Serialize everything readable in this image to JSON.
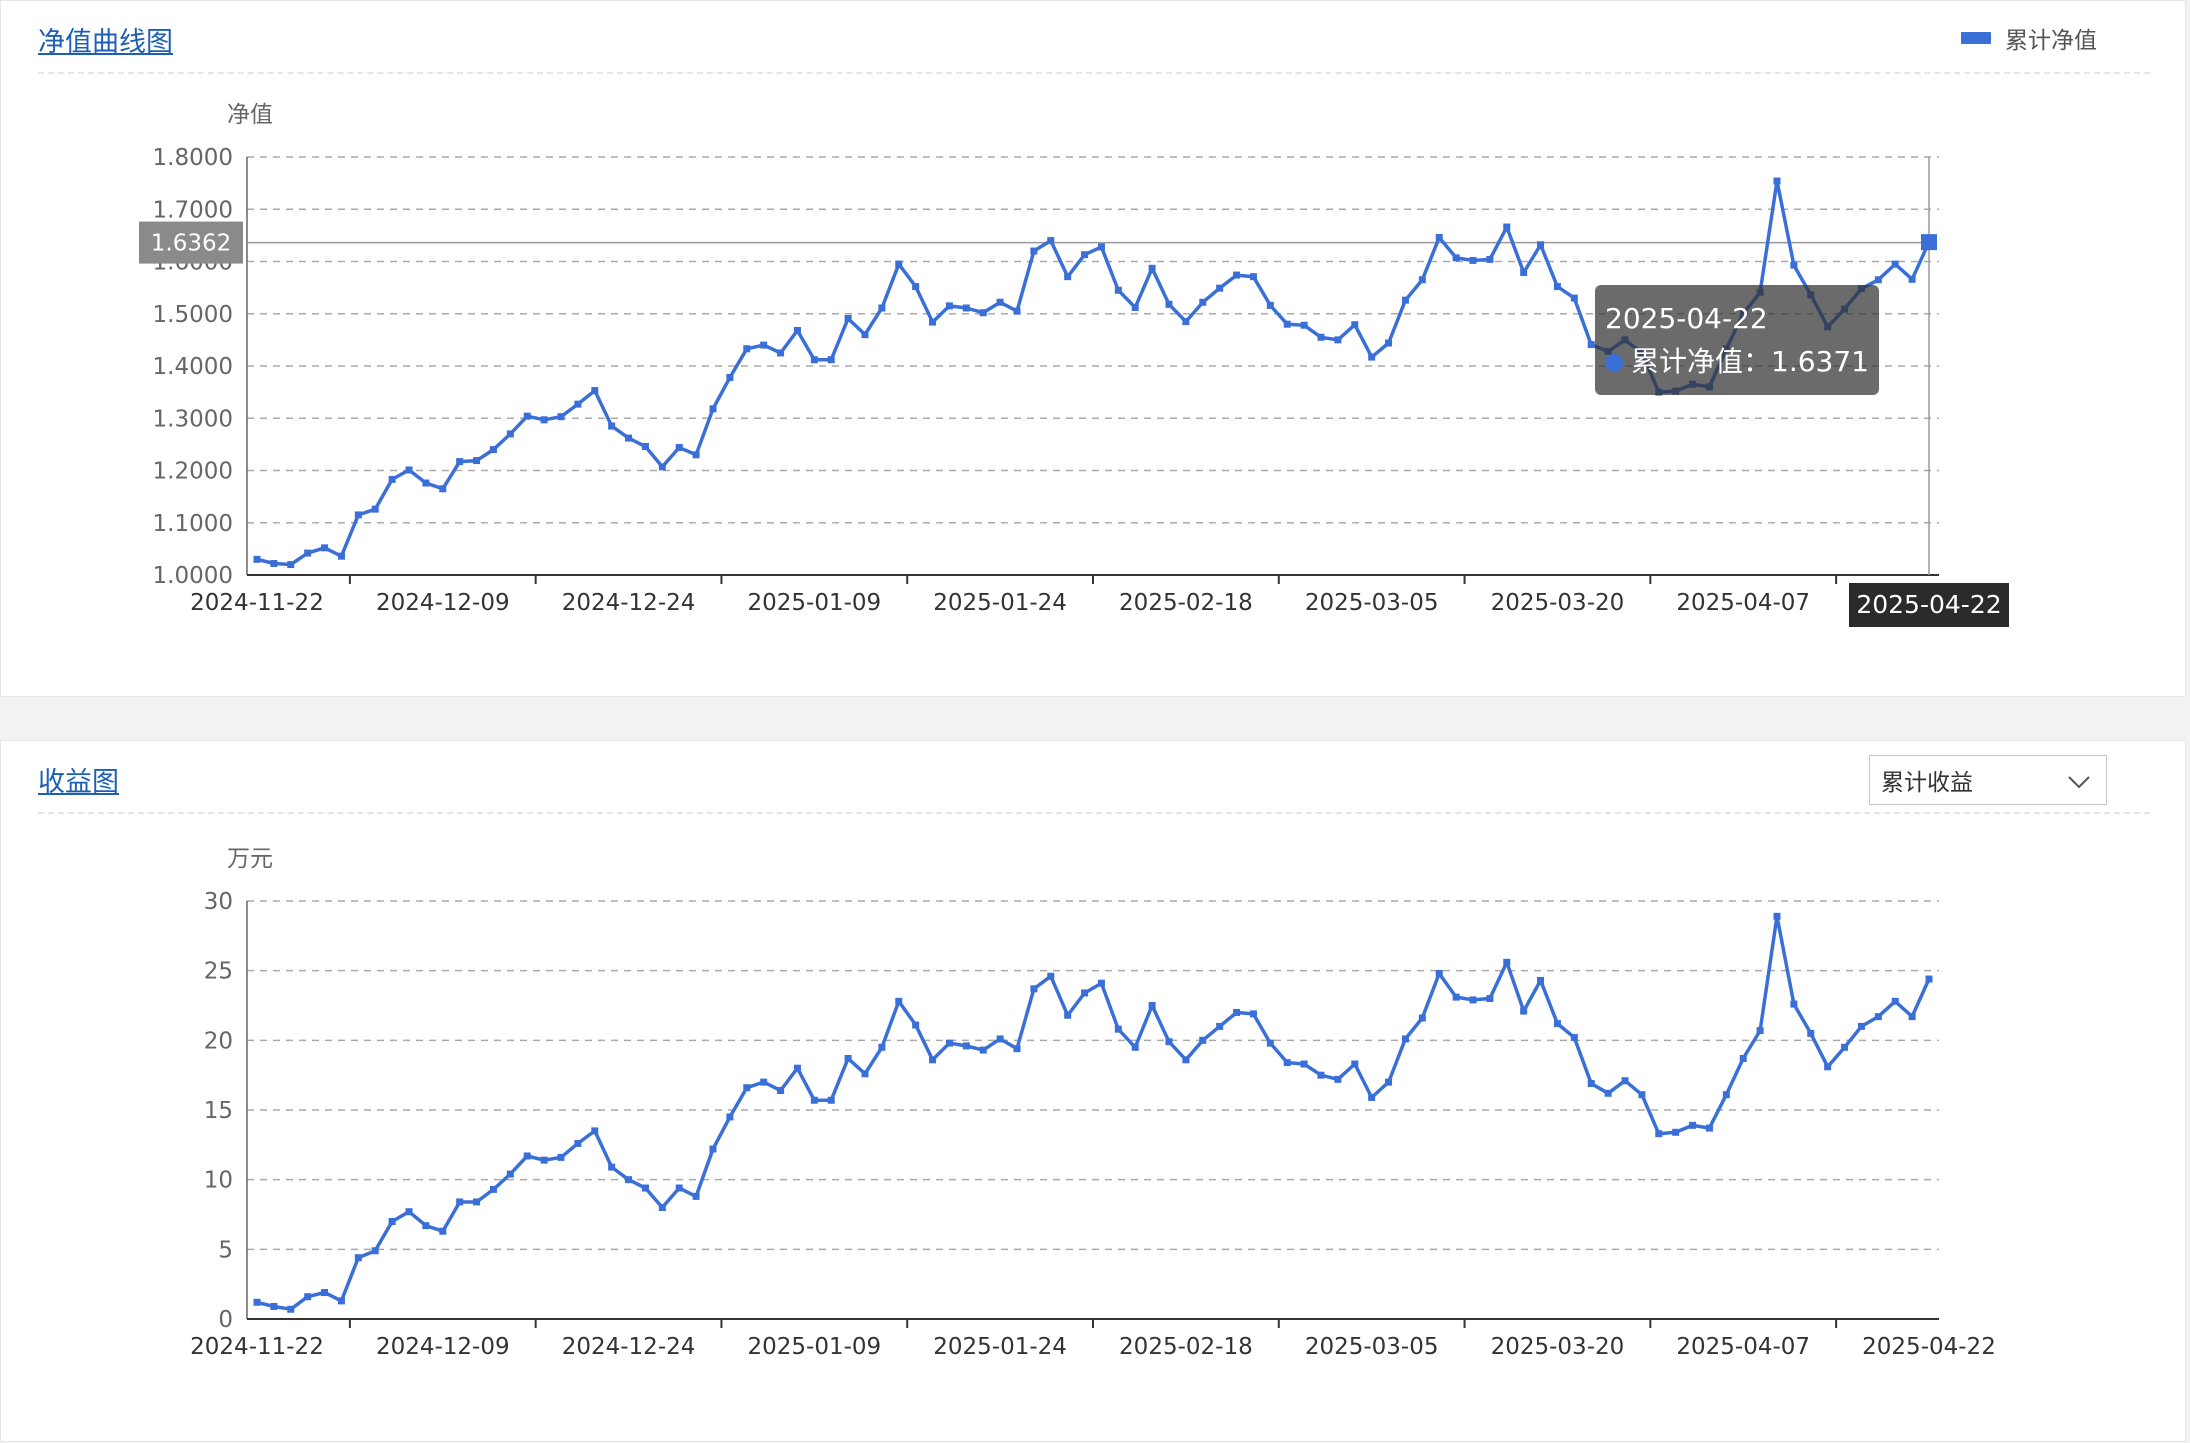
{
  "nav_panel": {
    "title": "净值曲线图",
    "legend_label": "累计净值",
    "axis_pointer_y_label": "1.6362",
    "axis_pointer_x_label": "2025-04-22",
    "tooltip": {
      "date": "2025-04-22",
      "series_label": "累计净值：",
      "value": "1.6371"
    }
  },
  "income_panel": {
    "title": "收益图",
    "select_value": "累计收益"
  },
  "colors": {
    "series": "#3a6fd8",
    "grid": "#aaaaaa",
    "axis": "#666666",
    "title": "#1e5fb4"
  },
  "chart_data": [
    {
      "type": "line",
      "ylabel": "净值",
      "ylim": [
        1.0,
        1.8
      ],
      "yticks": [
        "1.0000",
        "1.1000",
        "1.2000",
        "1.3000",
        "1.4000",
        "1.5000",
        "1.6000",
        "1.7000",
        "1.8000"
      ],
      "x_tick_labels": [
        "2024-11-22",
        "2024-12-09",
        "2024-12-24",
        "2025-01-09",
        "2025-01-24",
        "2025-02-18",
        "2025-03-05",
        "2025-03-20",
        "2025-04-07",
        "2025-04-22"
      ],
      "grid": true,
      "legend": "top-right",
      "series": [
        {
          "name": "累计净值",
          "values": [
            1.03,
            1.022,
            1.02,
            1.042,
            1.052,
            1.036,
            1.115,
            1.126,
            1.183,
            1.201,
            1.176,
            1.165,
            1.217,
            1.219,
            1.24,
            1.27,
            1.304,
            1.297,
            1.303,
            1.327,
            1.353,
            1.285,
            1.262,
            1.246,
            1.207,
            1.244,
            1.23,
            1.318,
            1.378,
            1.433,
            1.44,
            1.425,
            1.468,
            1.412,
            1.412,
            1.491,
            1.46,
            1.511,
            1.595,
            1.552,
            1.484,
            1.515,
            1.511,
            1.502,
            1.522,
            1.505,
            1.62,
            1.64,
            1.571,
            1.613,
            1.628,
            1.545,
            1.512,
            1.587,
            1.518,
            1.485,
            1.522,
            1.549,
            1.574,
            1.571,
            1.516,
            1.48,
            1.478,
            1.455,
            1.45,
            1.479,
            1.417,
            1.444,
            1.526,
            1.565,
            1.646,
            1.607,
            1.602,
            1.604,
            1.666,
            1.579,
            1.632,
            1.552,
            1.53,
            1.441,
            1.428,
            1.45,
            1.425,
            1.35,
            1.352,
            1.365,
            1.36,
            1.433,
            1.5,
            1.541,
            1.754,
            1.593,
            1.536,
            1.475,
            1.509,
            1.548,
            1.565,
            1.595,
            1.566,
            1.6371
          ]
        }
      ]
    },
    {
      "type": "line",
      "ylabel": "万元",
      "ylim": [
        0,
        30
      ],
      "yticks": [
        "0",
        "5",
        "10",
        "15",
        "20",
        "25",
        "30"
      ],
      "x_tick_labels": [
        "2024-11-22",
        "2024-12-09",
        "2024-12-24",
        "2025-01-09",
        "2025-01-24",
        "2025-02-18",
        "2025-03-05",
        "2025-03-20",
        "2025-04-07",
        "2025-04-22"
      ],
      "grid": true,
      "series": [
        {
          "values": [
            1.2,
            0.9,
            0.7,
            1.6,
            1.9,
            1.3,
            4.4,
            4.9,
            7.0,
            7.7,
            6.7,
            6.3,
            8.4,
            8.4,
            9.3,
            10.4,
            11.7,
            11.4,
            11.6,
            12.6,
            13.5,
            10.9,
            10.0,
            9.4,
            8.0,
            9.4,
            8.8,
            12.2,
            14.5,
            16.6,
            17.0,
            16.4,
            18.0,
            15.7,
            15.7,
            18.7,
            17.6,
            19.5,
            22.8,
            21.1,
            18.6,
            19.8,
            19.6,
            19.3,
            20.1,
            19.4,
            23.7,
            24.6,
            21.8,
            23.4,
            24.1,
            20.8,
            19.5,
            22.5,
            19.9,
            18.6,
            20.0,
            21.0,
            22.0,
            21.9,
            19.8,
            18.4,
            18.3,
            17.5,
            17.2,
            18.3,
            15.9,
            17.0,
            20.1,
            21.6,
            24.8,
            23.1,
            22.9,
            23.0,
            25.6,
            22.1,
            24.3,
            21.2,
            20.2,
            16.9,
            16.2,
            17.1,
            16.1,
            13.3,
            13.4,
            13.9,
            13.7,
            16.1,
            18.7,
            20.7,
            28.9,
            22.6,
            20.5,
            18.1,
            19.5,
            21.0,
            21.7,
            22.8,
            21.7,
            24.4
          ]
        }
      ]
    }
  ]
}
